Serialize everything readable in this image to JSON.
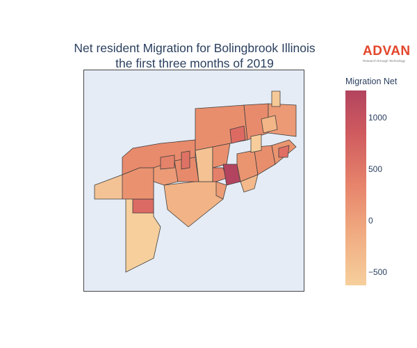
{
  "title": {
    "line1": "Net resident Migration for Bolingbrook Illinois",
    "line2": "the first three months of 2019"
  },
  "logo": {
    "word": "ADVAN",
    "tagline": "Research through Technology",
    "color": "#e2452a"
  },
  "colorbar": {
    "title": "Migration Net",
    "ticks": [
      "1000",
      "500",
      "0",
      "−500"
    ],
    "colorscale": [
      "#f6cf9c",
      "#f0a980",
      "#e6836b",
      "#cf5b5f",
      "#b3445f"
    ],
    "range": [
      -620,
      1250
    ]
  },
  "map": {
    "background": "#e5ecf6",
    "border_color": "#444444",
    "region_outline": "#3d3d3d"
  }
}
